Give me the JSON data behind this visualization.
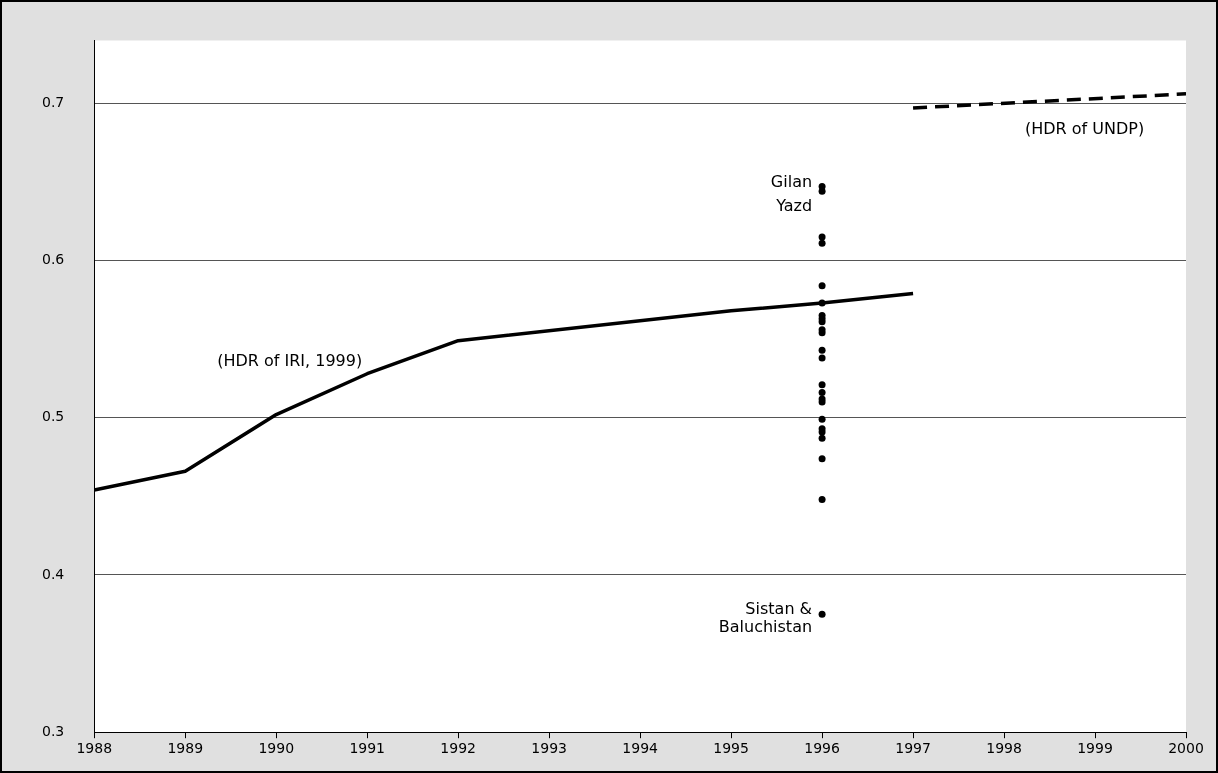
{
  "chart_data": {
    "type": "line",
    "xlim": [
      1988,
      2000
    ],
    "xticks": [
      1988,
      1989,
      1990,
      1991,
      1992,
      1993,
      1994,
      1995,
      1996,
      1997,
      1998,
      1999,
      2000
    ],
    "ylim": [
      0.3,
      0.74
    ],
    "yticks": [
      0.3,
      0.4,
      0.5,
      0.6,
      0.7
    ],
    "grid": "y",
    "legend": false,
    "series": [
      {
        "color": "#000000",
        "line_style": "solid",
        "marker": "none",
        "x": [
          1988,
          1989,
          1990,
          1991,
          1992,
          1995,
          1996,
          1997
        ],
        "values": [
          0.454,
          0.466,
          0.502,
          0.528,
          0.549,
          0.568,
          0.573,
          0.579
        ]
      },
      {
        "color": "#000000",
        "line_style": "dashed",
        "marker": "none",
        "x": [
          1997,
          2000
        ],
        "values": [
          0.697,
          0.706
        ]
      },
      {
        "type": "scatter",
        "color": "#000000",
        "marker": "circle",
        "x": [
          1996,
          1996,
          1996,
          1996,
          1996,
          1996,
          1996,
          1996,
          1996,
          1996,
          1996,
          1996,
          1996,
          1996,
          1996,
          1996,
          1996,
          1996,
          1996,
          1996,
          1996,
          1996,
          1996,
          1996
        ],
        "values": [
          0.375,
          0.448,
          0.474,
          0.487,
          0.491,
          0.493,
          0.499,
          0.51,
          0.512,
          0.516,
          0.521,
          0.538,
          0.543,
          0.554,
          0.556,
          0.561,
          0.563,
          0.565,
          0.573,
          0.584,
          0.611,
          0.615,
          0.644,
          0.647
        ]
      }
    ],
    "annotations": [
      {
        "text": "(HDR of IRI, 1999)",
        "x": 1991,
        "y": 0.528
      },
      {
        "text": "(HDR of UNDP)",
        "x": 1999,
        "y": 0.702
      },
      {
        "text": "Gilan",
        "x": 1996,
        "y": 0.647
      },
      {
        "text": "Yazd",
        "x": 1996,
        "y": 0.644
      },
      {
        "text": "Sistan & Baluchistan",
        "x": 1996,
        "y": 0.375
      }
    ]
  }
}
